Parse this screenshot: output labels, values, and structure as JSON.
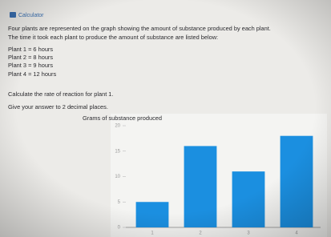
{
  "calculator_button": "Calculator",
  "intro": [
    "Four plants are represented on the graph showing the amount of substance produced by each plant.",
    "The time it took each plant to produce the amount of substance are listed below:"
  ],
  "plants": [
    "Plant 1 = 6 hours",
    "Plant 2 = 8 hours",
    "Plant 3 = 9 hours",
    "Plant 4 = 12 hours"
  ],
  "question": "Calculate the rate of reaction for plant 1.",
  "instruction": "Give your answer to 2 decimal places.",
  "chart_data": {
    "type": "bar",
    "y_label": "Grams of substance produced",
    "categories": [
      "1",
      "2",
      "3",
      "4"
    ],
    "values": [
      5,
      16,
      11,
      18
    ],
    "color": "#1b8fe0",
    "ylim": [
      0,
      20
    ],
    "yticks": [
      0,
      5,
      10,
      15,
      20
    ]
  }
}
